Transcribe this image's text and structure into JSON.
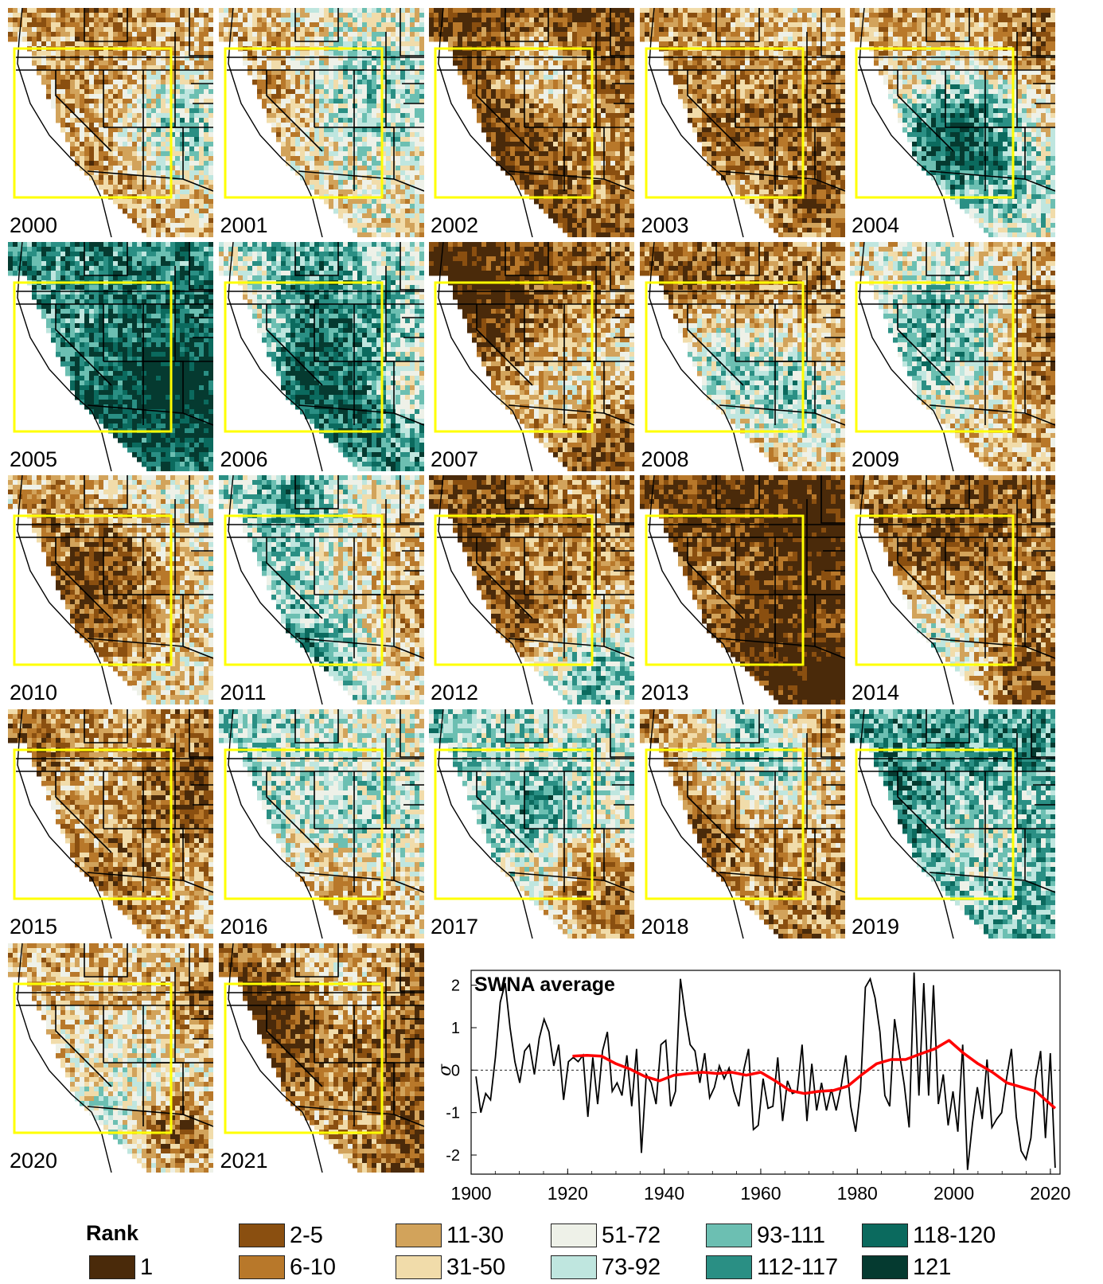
{
  "panels": [
    {
      "year": "2000",
      "tone": -0.35
    },
    {
      "year": "2001",
      "tone": -0.2
    },
    {
      "year": "2002",
      "tone": -1.0
    },
    {
      "year": "2003",
      "tone": -0.55
    },
    {
      "year": "2004",
      "tone": -0.45
    },
    {
      "year": "2005",
      "tone": 0.7
    },
    {
      "year": "2006",
      "tone": 0.15
    },
    {
      "year": "2007",
      "tone": -0.6
    },
    {
      "year": "2008",
      "tone": -0.4
    },
    {
      "year": "2009",
      "tone": -0.3
    },
    {
      "year": "2010",
      "tone": 0.05
    },
    {
      "year": "2011",
      "tone": 0.25
    },
    {
      "year": "2012",
      "tone": -0.7
    },
    {
      "year": "2013",
      "tone": -0.65
    },
    {
      "year": "2014",
      "tone": -0.55
    },
    {
      "year": "2015",
      "tone": -0.15
    },
    {
      "year": "2016",
      "tone": -0.1
    },
    {
      "year": "2017",
      "tone": 0.45
    },
    {
      "year": "2018",
      "tone": -0.6
    },
    {
      "year": "2019",
      "tone": 0.5
    },
    {
      "year": "2020",
      "tone": -0.35
    },
    {
      "year": "2021",
      "tone": -0.85
    }
  ],
  "colors": {
    "box": "#ffff00",
    "border_lines": "#000000",
    "running_mean": "#ff0000",
    "annual_series": "#000000"
  },
  "legend": {
    "title": "Rank",
    "items": [
      {
        "label": "1",
        "color": "#4a2a0a"
      },
      {
        "label": "2-5",
        "color": "#8a4f10"
      },
      {
        "label": "6-10",
        "color": "#b8782a"
      },
      {
        "label": "11-30",
        "color": "#d2a35b"
      },
      {
        "label": "31-50",
        "color": "#f1dcaa"
      },
      {
        "label": "51-72",
        "color": "#eef1e8"
      },
      {
        "label": "73-92",
        "color": "#bfe6df"
      },
      {
        "label": "93-111",
        "color": "#6cbfb2"
      },
      {
        "label": "112-117",
        "color": "#2a8f84"
      },
      {
        "label": "118-120",
        "color": "#0b6a5e"
      },
      {
        "label": "121",
        "color": "#053a30"
      }
    ]
  },
  "chart_data": {
    "type": "line",
    "title": "SWNA average",
    "xlabel": "",
    "ylabel": "σ",
    "xlim": [
      1900,
      2022
    ],
    "ylim": [
      -2.45,
      2.35
    ],
    "xticks": [
      "1900",
      "1920",
      "1940",
      "1960",
      "1980",
      "2000",
      "2020"
    ],
    "yticks": [
      "2",
      "1",
      "0",
      "-1",
      "-2"
    ],
    "zero_line": true,
    "series": [
      {
        "role": "annual",
        "x_start": 1901,
        "values": [
          -0.15,
          -1.0,
          -0.55,
          -0.7,
          0.3,
          1.6,
          2.05,
          1.0,
          0.2,
          -0.3,
          0.45,
          0.6,
          -0.1,
          0.75,
          1.2,
          0.9,
          0.1,
          0.6,
          -0.7,
          0.2,
          0.3,
          0.2,
          0.35,
          -1.1,
          0.3,
          -0.8,
          0.45,
          0.9,
          -0.5,
          -0.3,
          -0.6,
          0.35,
          -0.85,
          0.5,
          -1.95,
          -0.1,
          -0.3,
          -0.8,
          0.6,
          0.7,
          -0.85,
          -0.5,
          2.15,
          1.3,
          0.6,
          0.45,
          -0.3,
          0.4,
          -0.65,
          -0.4,
          0.1,
          -0.2,
          0.05,
          -0.5,
          -0.85,
          0.0,
          0.5,
          -1.4,
          -1.3,
          -0.2,
          -0.9,
          -0.85,
          0.3,
          -1.2,
          -0.25,
          -0.55,
          -0.5,
          0.6,
          -1.2,
          0.15,
          -0.95,
          -0.3,
          -0.95,
          -0.45,
          -0.95,
          -0.4,
          0.35,
          -0.85,
          -1.45,
          -0.45,
          1.95,
          2.15,
          1.7,
          0.9,
          -0.6,
          -0.85,
          1.2,
          0.4,
          -0.35,
          -1.35,
          2.3,
          -0.6,
          2.05,
          -0.6,
          2.0,
          -0.8,
          -0.1,
          -1.3,
          -0.5,
          -1.45,
          0.6,
          -2.35,
          -1.25,
          -0.4,
          -1.15,
          0.25,
          -1.35,
          -1.15,
          -1.0,
          -0.2,
          0.5,
          -1.1,
          -1.9,
          -2.1,
          -1.6,
          -0.2,
          0.45,
          -1.6,
          0.4,
          -2.3
        ],
        "end_year": 2021
      },
      {
        "role": "running-mean",
        "points": [
          [
            1921,
            0.33
          ],
          [
            1924,
            0.35
          ],
          [
            1927,
            0.33
          ],
          [
            1930,
            0.15
          ],
          [
            1933,
            0.02
          ],
          [
            1936,
            -0.15
          ],
          [
            1939,
            -0.25
          ],
          [
            1942,
            -0.12
          ],
          [
            1945,
            -0.08
          ],
          [
            1948,
            -0.05
          ],
          [
            1951,
            -0.08
          ],
          [
            1954,
            -0.05
          ],
          [
            1957,
            -0.12
          ],
          [
            1960,
            -0.05
          ],
          [
            1963,
            -0.25
          ],
          [
            1966,
            -0.48
          ],
          [
            1969,
            -0.55
          ],
          [
            1972,
            -0.5
          ],
          [
            1975,
            -0.48
          ],
          [
            1978,
            -0.38
          ],
          [
            1981,
            -0.1
          ],
          [
            1984,
            0.15
          ],
          [
            1987,
            0.25
          ],
          [
            1990,
            0.25
          ],
          [
            1993,
            0.38
          ],
          [
            1996,
            0.5
          ],
          [
            1999,
            0.7
          ],
          [
            2002,
            0.4
          ],
          [
            2005,
            0.15
          ],
          [
            2008,
            -0.05
          ],
          [
            2011,
            -0.3
          ],
          [
            2014,
            -0.4
          ],
          [
            2017,
            -0.5
          ],
          [
            2019,
            -0.7
          ],
          [
            2021,
            -0.9
          ]
        ]
      }
    ]
  }
}
